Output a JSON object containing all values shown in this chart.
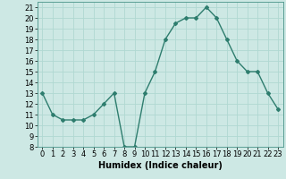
{
  "x": [
    0,
    1,
    2,
    3,
    4,
    5,
    6,
    7,
    8,
    9,
    10,
    11,
    12,
    13,
    14,
    15,
    16,
    17,
    18,
    19,
    20,
    21,
    22,
    23
  ],
  "y": [
    13,
    11,
    10.5,
    10.5,
    10.5,
    11,
    12,
    13,
    8,
    8,
    13,
    15,
    18,
    19.5,
    20,
    20,
    21,
    20,
    18,
    16,
    15,
    15,
    13,
    11.5
  ],
  "line_color": "#2e7d6e",
  "marker": "D",
  "marker_size": 2,
  "bg_color": "#cde8e4",
  "grid_color": "#b0d8d2",
  "xlabel": "Humidex (Indice chaleur)",
  "xlim": [
    -0.5,
    23.5
  ],
  "ylim": [
    8,
    21.5
  ],
  "yticks": [
    8,
    9,
    10,
    11,
    12,
    13,
    14,
    15,
    16,
    17,
    18,
    19,
    20,
    21
  ],
  "xticks": [
    0,
    1,
    2,
    3,
    4,
    5,
    6,
    7,
    8,
    9,
    10,
    11,
    12,
    13,
    14,
    15,
    16,
    17,
    18,
    19,
    20,
    21,
    22,
    23
  ],
  "xlabel_fontsize": 7,
  "tick_fontsize": 6,
  "line_width": 1.0
}
